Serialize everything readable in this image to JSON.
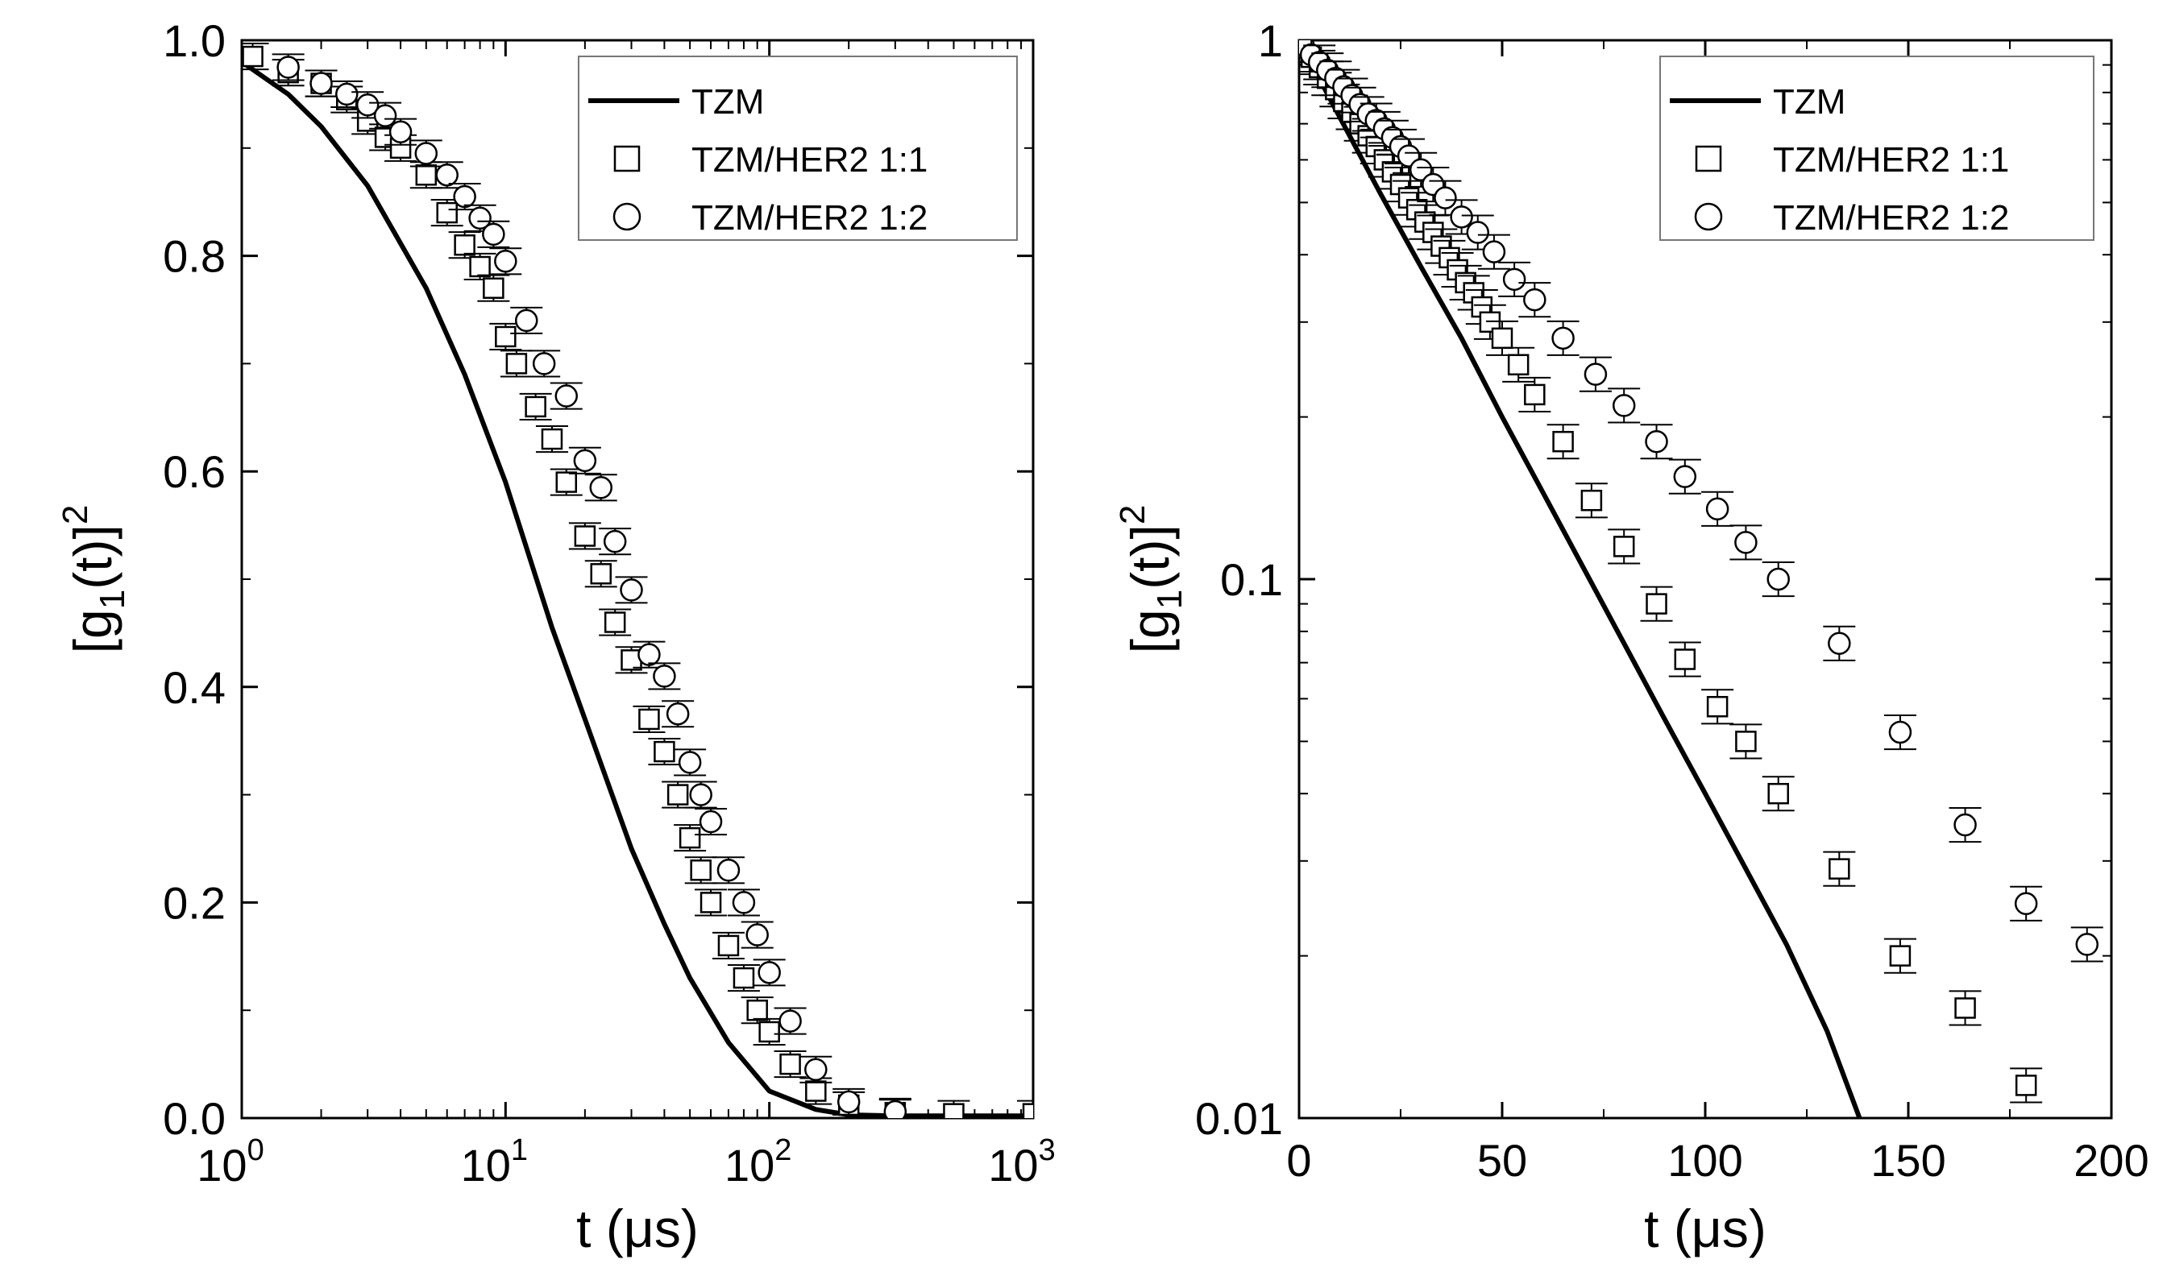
{
  "chart_data": [
    {
      "type": "scatter",
      "panel": "left",
      "xscale": "log",
      "yscale": "linear",
      "xlim": [
        1,
        1000
      ],
      "ylim": [
        0,
        1.0
      ],
      "xlabel": "t (μs)",
      "ylabel": "[g1(t)]2",
      "x_ticks": [
        {
          "value": 1,
          "base": "10",
          "exp": "0"
        },
        {
          "value": 10,
          "base": "10",
          "exp": "1"
        },
        {
          "value": 100,
          "base": "10",
          "exp": "2"
        },
        {
          "value": 1000,
          "base": "10",
          "exp": "3"
        }
      ],
      "y_ticks": [
        {
          "value": 0,
          "label": "0.0"
        },
        {
          "value": 0.2,
          "label": "0.2"
        },
        {
          "value": 0.4,
          "label": "0.4"
        },
        {
          "value": 0.6,
          "label": "0.6"
        },
        {
          "value": 0.8,
          "label": "0.8"
        },
        {
          "value": 1.0,
          "label": "1.0"
        }
      ],
      "legend_position": "top-right",
      "series": [
        {
          "name": "TZM",
          "style": "line",
          "x": [
            1,
            1.5,
            2,
            3,
            5,
            7,
            10,
            15,
            20,
            30,
            40,
            50,
            70,
            100,
            150,
            200,
            300,
            500,
            1000
          ],
          "y": [
            0.98,
            0.95,
            0.92,
            0.865,
            0.77,
            0.69,
            0.59,
            0.455,
            0.37,
            0.25,
            0.18,
            0.13,
            0.07,
            0.025,
            0.008,
            0.003,
            0.002,
            0.002,
            0.002
          ]
        },
        {
          "name": "TZM/HER2 1:1",
          "style": "square",
          "x": [
            1.1,
            1.5,
            2,
            2.5,
            3,
            3.5,
            4,
            5,
            6,
            7,
            8,
            9,
            10,
            11,
            13,
            15,
            17,
            20,
            23,
            26,
            30,
            35,
            40,
            45,
            50,
            55,
            60,
            70,
            80,
            90,
            100,
            120,
            150,
            200,
            300,
            500,
            1000
          ],
          "y": [
            0.985,
            0.97,
            0.96,
            0.945,
            0.925,
            0.91,
            0.9,
            0.875,
            0.84,
            0.81,
            0.79,
            0.77,
            0.725,
            0.7,
            0.66,
            0.63,
            0.59,
            0.54,
            0.505,
            0.46,
            0.425,
            0.37,
            0.34,
            0.3,
            0.26,
            0.23,
            0.2,
            0.16,
            0.13,
            0.1,
            0.08,
            0.05,
            0.025,
            0.012,
            0.005,
            0.004,
            0.004
          ]
        },
        {
          "name": "TZM/HER2 1:2",
          "style": "circle",
          "x": [
            1.5,
            2,
            2.5,
            3,
            3.5,
            4,
            5,
            6,
            7,
            8,
            9,
            10,
            12,
            14,
            17,
            20,
            23,
            26,
            30,
            35,
            40,
            45,
            50,
            55,
            60,
            70,
            80,
            90,
            100,
            120,
            150,
            200,
            300
          ],
          "y": [
            0.975,
            0.96,
            0.95,
            0.94,
            0.93,
            0.915,
            0.895,
            0.875,
            0.855,
            0.835,
            0.82,
            0.795,
            0.74,
            0.7,
            0.67,
            0.61,
            0.585,
            0.535,
            0.49,
            0.43,
            0.41,
            0.375,
            0.33,
            0.3,
            0.275,
            0.23,
            0.2,
            0.17,
            0.135,
            0.09,
            0.045,
            0.015,
            0.006
          ]
        }
      ]
    },
    {
      "type": "scatter",
      "panel": "right",
      "xscale": "linear",
      "yscale": "log",
      "xlim": [
        0,
        200
      ],
      "ylim": [
        0.01,
        1
      ],
      "xlabel": "t (μs)",
      "ylabel": "[g1(t)]2",
      "x_ticks": [
        {
          "value": 0,
          "label": "0"
        },
        {
          "value": 50,
          "label": "50"
        },
        {
          "value": 100,
          "label": "100"
        },
        {
          "value": 150,
          "label": "150"
        },
        {
          "value": 200,
          "label": "200"
        }
      ],
      "y_ticks": [
        {
          "value": 0.01,
          "label": "0.01"
        },
        {
          "value": 0.1,
          "label": "0.1"
        },
        {
          "value": 1,
          "label": "1"
        }
      ],
      "legend_position": "top-right",
      "series": [
        {
          "name": "TZM",
          "style": "line",
          "x": [
            0,
            10,
            20,
            30,
            40,
            50,
            60,
            70,
            80,
            90,
            100,
            110,
            120,
            130,
            138
          ],
          "y": [
            1.0,
            0.72,
            0.52,
            0.38,
            0.28,
            0.2,
            0.145,
            0.105,
            0.076,
            0.055,
            0.04,
            0.029,
            0.021,
            0.0145,
            0.01
          ]
        },
        {
          "name": "TZM/HER2 1:1",
          "style": "square",
          "x": [
            1,
            3,
            5,
            7,
            9,
            11,
            13,
            15,
            17,
            19,
            21,
            23,
            25,
            27,
            29,
            31,
            33,
            35,
            37,
            39,
            41,
            43,
            45,
            47,
            50,
            54,
            58,
            65,
            72,
            80,
            88,
            95,
            103,
            110,
            118,
            133,
            148,
            164,
            179
          ],
          "y": [
            0.97,
            0.93,
            0.89,
            0.85,
            0.81,
            0.77,
            0.735,
            0.7,
            0.665,
            0.635,
            0.6,
            0.57,
            0.54,
            0.51,
            0.485,
            0.46,
            0.44,
            0.415,
            0.395,
            0.375,
            0.355,
            0.34,
            0.32,
            0.3,
            0.28,
            0.25,
            0.22,
            0.18,
            0.14,
            0.115,
            0.09,
            0.071,
            0.058,
            0.05,
            0.04,
            0.029,
            0.02,
            0.016,
            0.0115
          ]
        },
        {
          "name": "TZM/HER2 1:2",
          "style": "circle",
          "x": [
            1,
            3,
            5,
            7,
            9,
            11,
            13,
            15,
            17,
            19,
            21,
            23,
            25,
            27,
            30,
            33,
            36,
            40,
            44,
            48,
            53,
            58,
            65,
            73,
            80,
            88,
            95,
            103,
            110,
            118,
            133,
            148,
            164,
            179,
            194
          ],
          "y": [
            0.98,
            0.94,
            0.91,
            0.88,
            0.85,
            0.82,
            0.79,
            0.76,
            0.73,
            0.71,
            0.685,
            0.66,
            0.635,
            0.61,
            0.575,
            0.54,
            0.51,
            0.47,
            0.44,
            0.405,
            0.36,
            0.33,
            0.28,
            0.24,
            0.21,
            0.18,
            0.155,
            0.135,
            0.117,
            0.1,
            0.076,
            0.052,
            0.035,
            0.025,
            0.021
          ]
        }
      ]
    }
  ]
}
